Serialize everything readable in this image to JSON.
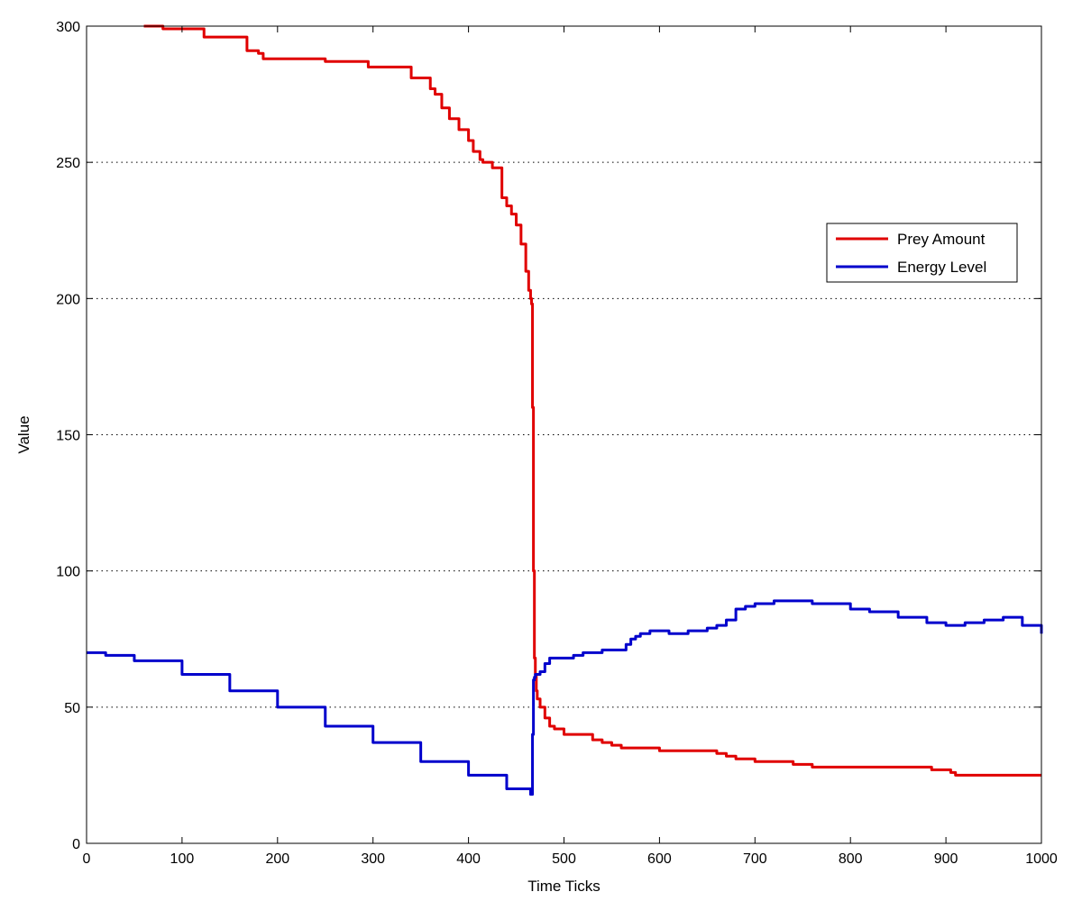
{
  "chart_data": {
    "type": "line",
    "title": "",
    "xlabel": "Time Ticks",
    "ylabel": "Value",
    "xlim": [
      0,
      1000
    ],
    "ylim": [
      0,
      300
    ],
    "xticks": [
      0,
      100,
      200,
      300,
      400,
      500,
      600,
      700,
      800,
      900,
      1000
    ],
    "yticks": [
      0,
      50,
      100,
      150,
      200,
      250,
      300
    ],
    "grid": "y-dotted",
    "legend_position": "top-right",
    "series": [
      {
        "name": "Prey Amount",
        "color": "#e00000",
        "x": [
          60,
          80,
          120,
          123,
          165,
          168,
          180,
          185,
          245,
          250,
          290,
          295,
          335,
          340,
          355,
          360,
          365,
          372,
          380,
          390,
          400,
          405,
          412,
          415,
          425,
          435,
          440,
          445,
          450,
          455,
          460,
          463,
          465,
          466,
          467,
          468,
          469,
          470,
          471,
          472,
          475,
          480,
          485,
          490,
          495,
          500,
          520,
          530,
          540,
          550,
          560,
          580,
          600,
          640,
          660,
          670,
          680,
          700,
          740,
          760,
          840,
          880,
          885,
          900,
          905,
          910,
          920,
          1000
        ],
        "y": [
          300,
          299,
          299,
          296,
          296,
          291,
          290,
          288,
          288,
          287,
          287,
          285,
          285,
          281,
          281,
          277,
          275,
          270,
          266,
          262,
          258,
          254,
          251,
          250,
          248,
          237,
          234,
          231,
          227,
          220,
          210,
          203,
          200,
          198,
          160,
          100,
          68,
          62,
          56,
          53,
          50,
          46,
          43,
          42,
          42,
          40,
          40,
          38,
          37,
          36,
          35,
          35,
          34,
          34,
          33,
          32,
          31,
          30,
          29,
          28,
          28,
          28,
          27,
          27,
          26,
          25,
          25,
          25
        ]
      },
      {
        "name": "Energy Level",
        "color": "#0000cc",
        "x": [
          0,
          20,
          50,
          100,
          150,
          200,
          250,
          300,
          350,
          400,
          440,
          465,
          467,
          468,
          469,
          470,
          475,
          480,
          485,
          490,
          500,
          510,
          520,
          540,
          560,
          565,
          570,
          575,
          580,
          590,
          600,
          610,
          630,
          650,
          660,
          670,
          680,
          690,
          700,
          720,
          740,
          760,
          780,
          800,
          820,
          850,
          880,
          900,
          910,
          920,
          940,
          960,
          980,
          1000
        ],
        "y": [
          70,
          69,
          67,
          62,
          56,
          50,
          43,
          37,
          30,
          25,
          20,
          18,
          40,
          60,
          61,
          62,
          63,
          66,
          68,
          68,
          68,
          69,
          70,
          71,
          71,
          73,
          75,
          76,
          77,
          78,
          78,
          77,
          78,
          79,
          80,
          82,
          86,
          87,
          88,
          89,
          89,
          88,
          88,
          86,
          85,
          83,
          81,
          80,
          80,
          81,
          82,
          83,
          80,
          77
        ]
      }
    ]
  }
}
